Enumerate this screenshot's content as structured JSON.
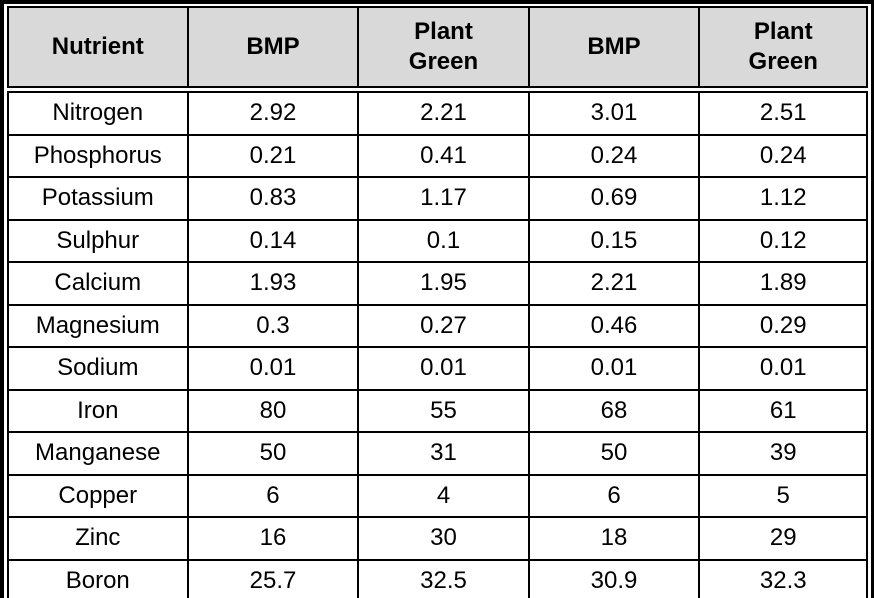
{
  "colors": {
    "header_bg": "#d9d9d9",
    "border": "#000000",
    "text": "#000000",
    "background": "#ffffff"
  },
  "table": {
    "columns": [
      {
        "label": "Nutrient"
      },
      {
        "label": "BMP"
      },
      {
        "label": "Plant\nGreen"
      },
      {
        "label": "BMP"
      },
      {
        "label": "Plant\nGreen"
      }
    ],
    "rows": [
      {
        "nutrient": "Nitrogen",
        "values": [
          "2.92",
          "2.21",
          "3.01",
          "2.51"
        ]
      },
      {
        "nutrient": "Phosphorus",
        "values": [
          "0.21",
          "0.41",
          "0.24",
          "0.24"
        ]
      },
      {
        "nutrient": "Potassium",
        "values": [
          "0.83",
          "1.17",
          "0.69",
          "1.12"
        ]
      },
      {
        "nutrient": "Sulphur",
        "values": [
          "0.14",
          "0.1",
          "0.15",
          "0.12"
        ]
      },
      {
        "nutrient": "Calcium",
        "values": [
          "1.93",
          "1.95",
          "2.21",
          "1.89"
        ]
      },
      {
        "nutrient": "Magnesium",
        "values": [
          "0.3",
          "0.27",
          "0.46",
          "0.29"
        ]
      },
      {
        "nutrient": "Sodium",
        "values": [
          "0.01",
          "0.01",
          "0.01",
          "0.01"
        ]
      },
      {
        "nutrient": "Iron",
        "values": [
          "80",
          "55",
          "68",
          "61"
        ]
      },
      {
        "nutrient": "Manganese",
        "values": [
          "50",
          "31",
          "50",
          "39"
        ]
      },
      {
        "nutrient": "Copper",
        "values": [
          "6",
          "4",
          "6",
          "5"
        ]
      },
      {
        "nutrient": "Zinc",
        "values": [
          "16",
          "30",
          "18",
          "29"
        ]
      },
      {
        "nutrient": "Boron",
        "values": [
          "25.7",
          "32.5",
          "30.9",
          "32.3"
        ]
      }
    ]
  }
}
